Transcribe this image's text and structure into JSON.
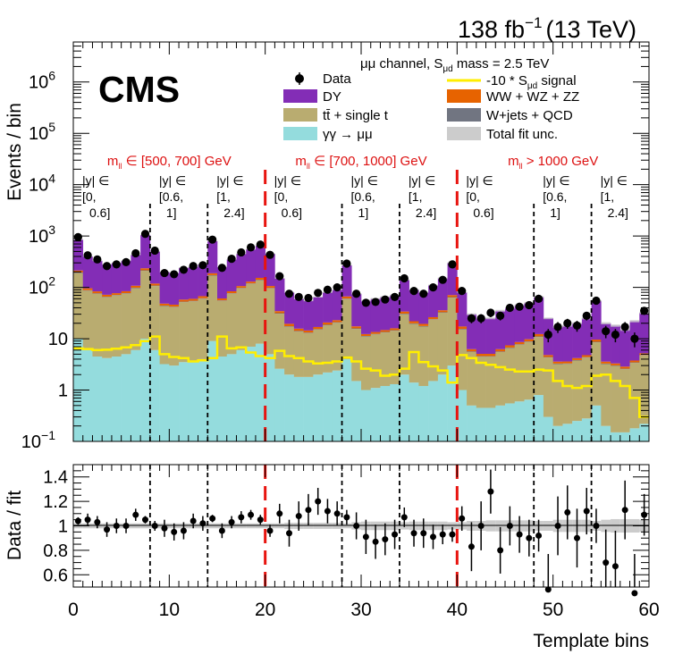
{
  "chart_data": {
    "type": "stacked-bar-with-ratio",
    "lumi_label": "138 fb",
    "lumi_exponent": "−1",
    "energy_label": "(13 TeV)",
    "experiment": "CMS",
    "channel_label": "μμ channel, S",
    "channel_sub": "μd",
    "channel_suffix": " mass = 2.5 TeV",
    "ylabel": "Events / bin",
    "ratio_ylabel": "Data / fit",
    "xlabel": "Template bins",
    "xlim": [
      0,
      60
    ],
    "ylim": [
      0.1,
      6000000
    ],
    "ratio_ylim": [
      0.5,
      1.5
    ],
    "xticks": [
      "0",
      "10",
      "20",
      "30",
      "40",
      "50",
      "60"
    ],
    "yticks": [
      {
        "base": "10",
        "exp": "−1"
      },
      {
        "base": "1",
        "exp": ""
      },
      {
        "base": "10",
        "exp": ""
      },
      {
        "base": "10",
        "exp": "2"
      },
      {
        "base": "10",
        "exp": "3"
      },
      {
        "base": "10",
        "exp": "4"
      },
      {
        "base": "10",
        "exp": "5"
      },
      {
        "base": "10",
        "exp": "6"
      }
    ],
    "ratio_yticks": [
      "0.6",
      "0.8",
      "1",
      "1.2",
      "1.4"
    ],
    "legend": [
      {
        "label": "Data",
        "color": "#000000"
      },
      {
        "label": "DY",
        "color": "#832db6"
      },
      {
        "label": "tt̄ + single t",
        "color": "#b9ac70"
      },
      {
        "label": "γγ → μμ",
        "color": "#94dcdd"
      },
      {
        "label": "-10 * S",
        "sub": "μd",
        "suffix": " signal",
        "color": "#ffee00"
      },
      {
        "label": "WW + WZ + ZZ",
        "color": "#e76300"
      },
      {
        "label": "W+jets + QCD",
        "color": "#717581"
      },
      {
        "label": "Total fit unc.",
        "color": "#cccccc"
      }
    ],
    "mass_regions": [
      {
        "label": "m",
        "sub": "ll",
        "range": "∈ [500, 700] GeV",
        "x_from": 0,
        "x_to": 20
      },
      {
        "label": "m",
        "sub": "ll",
        "range": "∈ [700, 1000] GeV",
        "x_from": 20,
        "x_to": 40
      },
      {
        "label": "m",
        "sub": "ll",
        "range": "> 1000 GeV",
        "x_from": 40,
        "x_to": 60
      }
    ],
    "rapidity_labels": [
      {
        "lines": [
          "|y| ∈",
          "[0,",
          "0.6]"
        ],
        "x": 0
      },
      {
        "lines": [
          "|y| ∈",
          "[0.6,",
          "1]"
        ],
        "x": 8
      },
      {
        "lines": [
          "|y| ∈",
          "[1,",
          "2.4]"
        ],
        "x": 14
      },
      {
        "lines": [
          "|y| ∈",
          "[0,",
          "0.6]"
        ],
        "x": 20
      },
      {
        "lines": [
          "|y| ∈",
          "[0.6,",
          "1]"
        ],
        "x": 28
      },
      {
        "lines": [
          "|y| ∈",
          "[1,",
          "2.4]"
        ],
        "x": 34
      },
      {
        "lines": [
          "|y| ∈",
          "[0,",
          "0.6]"
        ],
        "x": 40
      },
      {
        "lines": [
          "|y| ∈",
          "[0.6,",
          "1]"
        ],
        "x": 48
      },
      {
        "lines": [
          "|y| ∈",
          "[1,",
          "2.4]"
        ],
        "x": 54
      }
    ],
    "rapidity_boundaries": [
      8,
      14,
      28,
      34,
      48,
      54
    ],
    "mass_boundaries": [
      20,
      40
    ],
    "total_fit": [
      850,
      400,
      330,
      280,
      300,
      330,
      430,
      1050,
      500,
      200,
      190,
      240,
      250,
      280,
      800,
      250,
      350,
      450,
      550,
      650,
      450,
      150,
      80,
      60,
      55,
      65,
      80,
      90,
      270,
      75,
      55,
      60,
      65,
      70,
      140,
      90,
      80,
      110,
      150,
      300,
      80,
      30,
      25,
      25,
      35,
      40,
      45,
      50,
      65,
      25,
      17,
      18,
      20,
      25,
      55,
      20,
      18,
      15,
      22,
      32
    ],
    "diboson": [
      18,
      8,
      7,
      6,
      6,
      7,
      9,
      20,
      10,
      4,
      4,
      5,
      5,
      6,
      15,
      5,
      7,
      8,
      10,
      12,
      9,
      3,
      2,
      1.5,
      1.3,
      1.5,
      2,
      2,
      6,
      1.5,
      1,
      1.1,
      1.2,
      1.3,
      3,
      2,
      1.8,
      2.2,
      3,
      6,
      1.8,
      0.6,
      0.5,
      0.5,
      0.6,
      0.7,
      0.8,
      0.9,
      1.2,
      0.4,
      0.3,
      0.3,
      0.35,
      0.4,
      0.9,
      0.3,
      0.28,
      0.25,
      0.3,
      0.4
    ],
    "wjets": [
      5,
      2,
      2,
      1.5,
      1.6,
      2,
      2.5,
      5,
      2.5,
      1,
      1,
      1.2,
      1.3,
      1.4,
      4,
      1.3,
      1.8,
      2,
      2.5,
      3,
      2.3,
      0.8,
      0.5,
      0.4,
      0.35,
      0.4,
      0.5,
      0.55,
      1.5,
      0.4,
      0.3,
      0.3,
      0.32,
      0.35,
      0.8,
      0.5,
      0.45,
      0.55,
      0.8,
      1.6,
      0.5,
      0.15,
      0.12,
      0.12,
      0.15,
      0.18,
      0.2,
      0.22,
      0.3,
      0.1,
      0.08,
      0.08,
      0.09,
      0.1,
      0.22,
      0.08,
      0.07,
      0.06,
      0.08,
      0.1
    ],
    "ttbar": [
      180,
      80,
      70,
      60,
      65,
      70,
      90,
      200,
      100,
      40,
      38,
      48,
      50,
      56,
      160,
      50,
      70,
      90,
      110,
      130,
      90,
      28,
      15,
      12,
      11,
      13,
      16,
      18,
      55,
      14,
      10,
      11,
      12,
      13,
      28,
      18,
      16,
      22,
      30,
      60,
      14,
      5,
      4,
      4,
      5,
      6,
      7,
      8,
      10,
      4,
      3,
      3,
      3.5,
      4,
      8,
      3,
      2.8,
      2.4,
      3.2,
      4.5
    ],
    "gammagamma": [
      10,
      6,
      4.5,
      4.2,
      4.5,
      5,
      6,
      10,
      6,
      3.2,
      3,
      3.5,
      3.5,
      4,
      9,
      4.5,
      5,
      6,
      7,
      8,
      5,
      2.6,
      2,
      1.8,
      1.8,
      2,
      2.2,
      2.4,
      4,
      1.5,
      1,
      1.1,
      1.2,
      1.3,
      2,
      1.4,
      1.2,
      1.5,
      2,
      3,
      1,
      0.5,
      0.45,
      0.45,
      0.5,
      0.55,
      0.6,
      0.65,
      0.8,
      0.3,
      0.2,
      0.22,
      0.25,
      0.28,
      0.5,
      0.2,
      0.15,
      0.15,
      0.18,
      0.22
    ],
    "signal": [
      6.5,
      6.3,
      6,
      6.1,
      6.4,
      6.8,
      7.5,
      9,
      11,
      5,
      4.4,
      4.2,
      3.6,
      3.8,
      4.2,
      11,
      6.5,
      6.8,
      5.4,
      4.6,
      4.2,
      5.8,
      4.6,
      4.2,
      3.6,
      3.3,
      3.4,
      3.6,
      4.3,
      3.6,
      2.6,
      2.4,
      1.9,
      2,
      2.6,
      5.5,
      3.5,
      2.9,
      2.4,
      1.4,
      4.8,
      4.2,
      3.4,
      3.1,
      2.8,
      2.5,
      2.3,
      2.3,
      2.5,
      2.4,
      1.5,
      1.2,
      1.1,
      1.2,
      1.9,
      2,
      1.5,
      1.2,
      0.7,
      0.3
    ],
    "data": [
      950,
      420,
      350,
      260,
      280,
      310,
      460,
      1100,
      520,
      190,
      180,
      220,
      260,
      270,
      850,
      240,
      360,
      480,
      600,
      680,
      430,
      165,
      75,
      65,
      62,
      78,
      90,
      100,
      290,
      75,
      50,
      52,
      58,
      65,
      150,
      85,
      75,
      100,
      140,
      280,
      85,
      25,
      25,
      32,
      28,
      40,
      42,
      45,
      60,
      12,
      17,
      20,
      18,
      28,
      55,
      14,
      12,
      17,
      10,
      35
    ],
    "data_err_ratio": [
      0.03,
      0.05,
      0.05,
      0.06,
      0.06,
      0.06,
      0.05,
      0.03,
      0.04,
      0.07,
      0.07,
      0.07,
      0.06,
      0.06,
      0.03,
      0.06,
      0.05,
      0.05,
      0.04,
      0.04,
      0.05,
      0.08,
      0.11,
      0.12,
      0.13,
      0.11,
      0.1,
      0.1,
      0.06,
      0.11,
      0.14,
      0.14,
      0.13,
      0.12,
      0.08,
      0.11,
      0.12,
      0.1,
      0.08,
      0.06,
      0.1,
      0.2,
      0.2,
      0.18,
      0.19,
      0.16,
      0.15,
      0.15,
      0.13,
      0.29,
      0.24,
      0.22,
      0.24,
      0.19,
      0.14,
      0.27,
      0.29,
      0.24,
      0.32,
      0.17
    ],
    "ratio": [
      1.04,
      1.05,
      1.03,
      0.97,
      1.0,
      1.0,
      1.09,
      1.05,
      1.0,
      0.98,
      0.95,
      0.96,
      1.04,
      1.02,
      1.06,
      0.96,
      1.03,
      1.07,
      1.09,
      1.05,
      0.96,
      1.1,
      0.94,
      1.08,
      1.13,
      1.2,
      1.12,
      1.1,
      1.07,
      1.0,
      0.91,
      0.87,
      0.89,
      0.93,
      1.07,
      0.94,
      0.94,
      0.91,
      0.93,
      0.93,
      1.06,
      0.83,
      1.0,
      1.28,
      0.8,
      1.0,
      0.93,
      0.9,
      0.92,
      0.48,
      1.0,
      1.11,
      0.9,
      1.12,
      1.0,
      0.7,
      0.67,
      1.13,
      0.45,
      1.09
    ],
    "fit_unc_rel": [
      0.02,
      0.02,
      0.02,
      0.02,
      0.02,
      0.02,
      0.02,
      0.02,
      0.02,
      0.02,
      0.02,
      0.02,
      0.02,
      0.02,
      0.02,
      0.02,
      0.02,
      0.02,
      0.02,
      0.02,
      0.02,
      0.02,
      0.025,
      0.025,
      0.025,
      0.025,
      0.025,
      0.025,
      0.02,
      0.03,
      0.035,
      0.035,
      0.035,
      0.035,
      0.03,
      0.035,
      0.035,
      0.035,
      0.035,
      0.03,
      0.03,
      0.04,
      0.04,
      0.045,
      0.045,
      0.045,
      0.045,
      0.045,
      0.04,
      0.04,
      0.05,
      0.05,
      0.05,
      0.05,
      0.04,
      0.05,
      0.055,
      0.055,
      0.055,
      0.05
    ]
  }
}
